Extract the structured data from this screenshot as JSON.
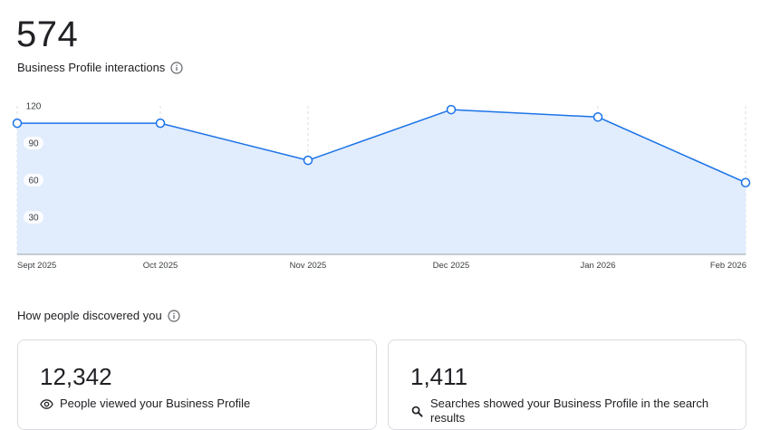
{
  "header": {
    "total": "574",
    "label": "Business Profile interactions"
  },
  "discovery": {
    "title": "How people discovered you",
    "cards": [
      {
        "value": "12,342",
        "label": "People viewed your Business Profile",
        "icon": "eye-icon"
      },
      {
        "value": "1,411",
        "label": "Searches showed your Business Profile in the search results",
        "icon": "search-icon"
      }
    ]
  },
  "chart_data": {
    "type": "area",
    "title": "",
    "xlabel": "",
    "ylabel": "",
    "categories": [
      "Sept 2025",
      "Oct 2025",
      "Nov 2025",
      "Dec 2025",
      "Jan 2026",
      "Feb 2026"
    ],
    "series": [
      {
        "values": [
          106,
          106,
          76,
          117,
          111,
          58
        ]
      }
    ],
    "yticks": [
      30,
      60,
      90,
      120
    ],
    "ylim": [
      0,
      120
    ],
    "grid": "vertical dashed",
    "colors": {
      "line": "#1a73e8",
      "fill": "#e1ecfc",
      "grid": "#dadce0"
    }
  }
}
